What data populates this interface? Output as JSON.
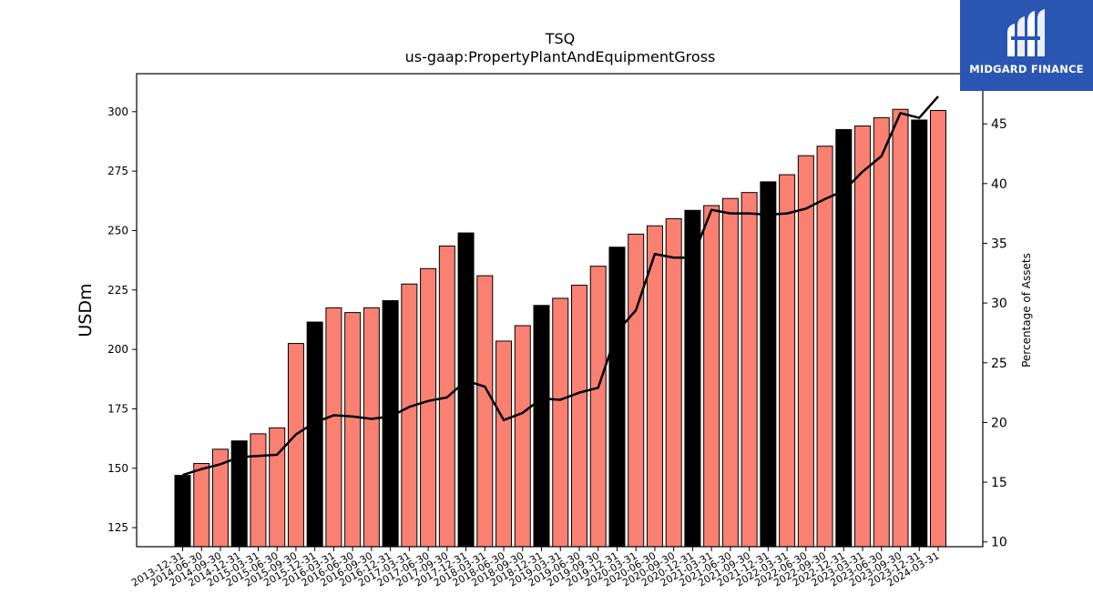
{
  "brand": {
    "name": "MIDGARD FINANCE",
    "logo_icon": "midgard-logo-icon",
    "bg_color": "#2a55b3"
  },
  "chart_data": {
    "type": "bar",
    "title": "TSQ",
    "subtitle": "us-gaap:PropertyPlantAndEquipmentGross",
    "ylabel": "USDm",
    "y2label": "Percentage of Assets",
    "ylim": [
      117,
      316
    ],
    "y2lim": [
      9.6,
      49.2
    ],
    "yticks": [
      125,
      150,
      175,
      200,
      225,
      250,
      275,
      300
    ],
    "y2ticks": [
      10,
      15,
      20,
      25,
      30,
      35,
      40,
      45
    ],
    "grid": false,
    "colors": {
      "annual": "#000000",
      "quarterly": "#fa8072",
      "line": "#000000"
    },
    "categories": [
      "2013-12-31",
      "2014-06-30",
      "2014-09-30",
      "2014-12-31",
      "2015-03-31",
      "2015-06-30",
      "2015-09-30",
      "2015-12-31",
      "2016-03-31",
      "2016-06-30",
      "2016-09-30",
      "2016-12-31",
      "2017-03-31",
      "2017-06-30",
      "2017-09-30",
      "2017-12-31",
      "2018-03-31",
      "2018-06-30",
      "2018-09-30",
      "2018-12-31",
      "2019-03-31",
      "2019-06-30",
      "2019-09-30",
      "2019-12-31",
      "2020-03-31",
      "2020-06-30",
      "2020-09-30",
      "2020-12-31",
      "2021-03-31",
      "2021-06-30",
      "2021-09-30",
      "2021-12-31",
      "2022-03-31",
      "2022-06-30",
      "2022-09-30",
      "2022-12-31",
      "2023-03-31",
      "2023-06-30",
      "2023-09-30",
      "2023-12-31",
      "2024-03-31"
    ],
    "series": [
      {
        "kind": "bar",
        "values": [
          147,
          152,
          158,
          161.5,
          164.5,
          167,
          202.5,
          211.5,
          217.5,
          215.5,
          217.5,
          220.5,
          227.5,
          234,
          243.5,
          249,
          231,
          203.5,
          210,
          218.5,
          221.5,
          227,
          235,
          243,
          248.5,
          252,
          255,
          258.5,
          260.5,
          263.5,
          266,
          270.5,
          273.5,
          281.5,
          285.5,
          292.5,
          294,
          297.5,
          301,
          296.5,
          300.5
        ],
        "annual": [
          true,
          false,
          false,
          true,
          false,
          false,
          false,
          true,
          false,
          false,
          false,
          true,
          false,
          false,
          false,
          true,
          false,
          false,
          false,
          true,
          false,
          false,
          false,
          true,
          false,
          false,
          false,
          true,
          false,
          false,
          false,
          true,
          false,
          false,
          false,
          true,
          false,
          false,
          false,
          true,
          false
        ]
      },
      {
        "kind": "line",
        "axis": "right",
        "values": [
          15.6,
          16.1,
          16.5,
          17.1,
          17.2,
          17.3,
          19.0,
          20.0,
          20.6,
          20.5,
          20.3,
          20.5,
          21.3,
          21.8,
          22.1,
          23.5,
          23.0,
          20.2,
          20.8,
          22.0,
          21.9,
          22.5,
          22.9,
          27.6,
          29.4,
          34.1,
          33.8,
          33.8,
          37.8,
          37.5,
          37.5,
          37.4,
          37.5,
          37.9,
          38.7,
          39.4,
          41.0,
          42.3,
          45.9,
          45.5,
          47.3
        ]
      }
    ]
  }
}
